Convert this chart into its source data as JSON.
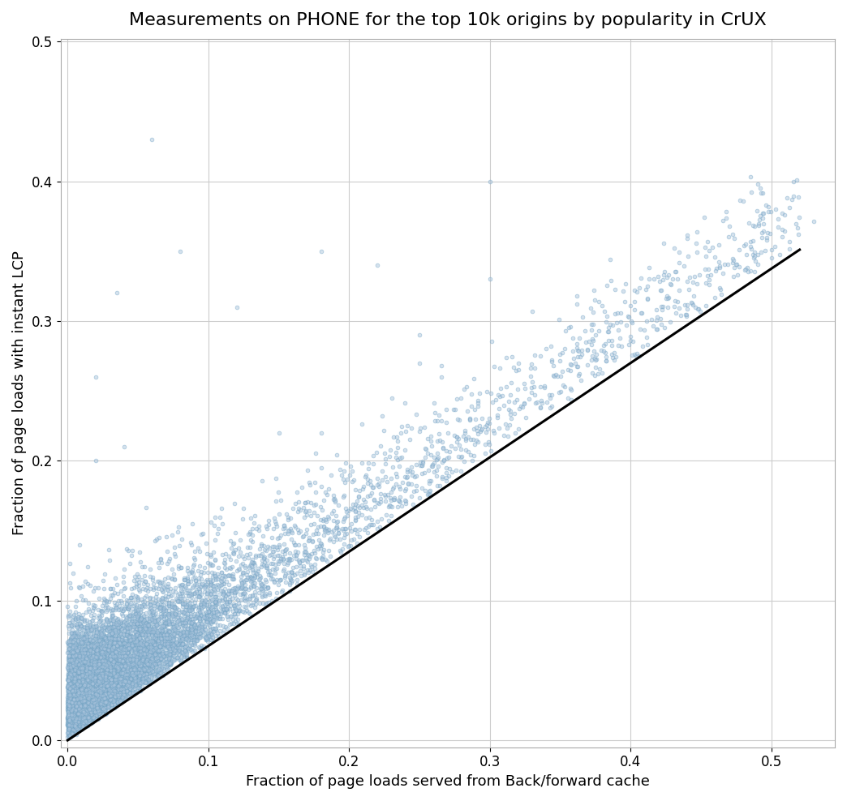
{
  "title": "Measurements on PHONE for the top 10k origins by popularity in CrUX",
  "xlabel": "Fraction of page loads served from Back/forward cache",
  "ylabel": "Fraction of page loads with instant LCP",
  "xlim": [
    -0.005,
    0.545
  ],
  "ylim": [
    -0.005,
    0.502
  ],
  "xticks": [
    0.0,
    0.1,
    0.2,
    0.3,
    0.4,
    0.5
  ],
  "yticks": [
    0.0,
    0.1,
    0.2,
    0.3,
    0.4,
    0.5
  ],
  "scatter_color": "#aac4dd",
  "scatter_alpha": 0.5,
  "scatter_size": 12,
  "scatter_linewidth": 0.5,
  "scatter_edgecolor": "#6a9fc0",
  "line_color": "black",
  "line_width": 2.2,
  "line_slope": 0.675,
  "line_intercept": 0.0,
  "n_points": 10000,
  "seed": 42,
  "background_color": "white",
  "grid_color": "#cccccc",
  "title_fontsize": 16,
  "label_fontsize": 13
}
